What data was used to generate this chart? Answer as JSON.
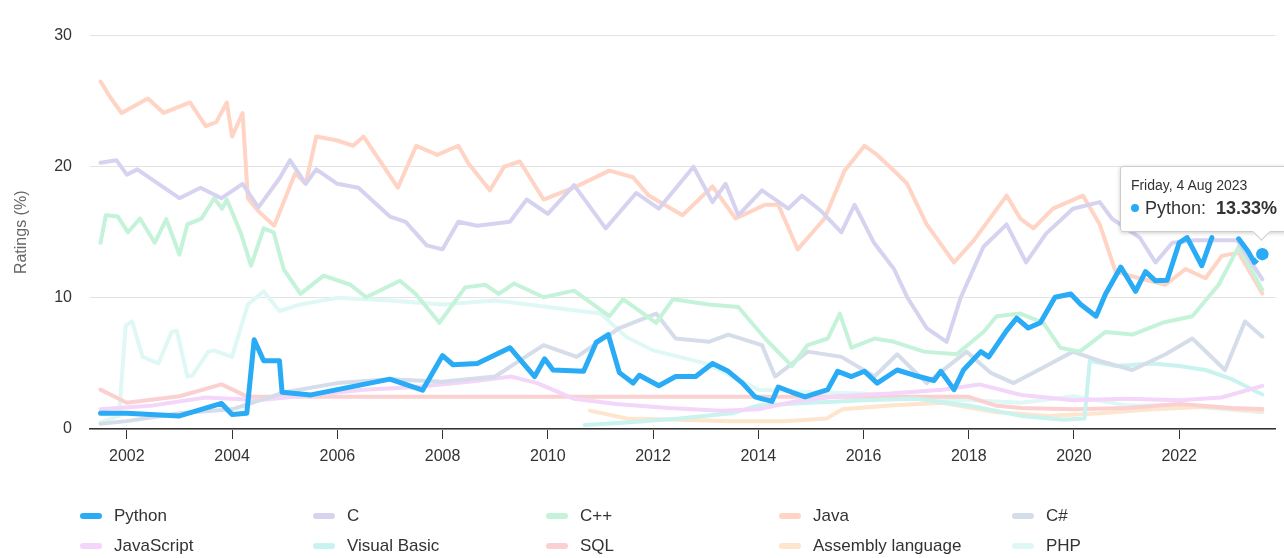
{
  "chart_data": {
    "type": "line",
    "ylabel": "Ratings (%)",
    "xlim": [
      2001.3,
      2023.83
    ],
    "xticks": [
      2002,
      2004,
      2006,
      2008,
      2010,
      2012,
      2014,
      2016,
      2018,
      2020,
      2022
    ],
    "ylim": [
      0,
      30
    ],
    "yticks": [
      0,
      10,
      20,
      30
    ],
    "grid": "y",
    "legend": "bottom",
    "marker": "none",
    "annotations": [
      "Friday, 4 Aug 2023",
      "Python: 13.33%"
    ],
    "series": [
      {
        "name": "Python",
        "color": "#29abf5",
        "x": [
          2001.5,
          2002.0,
          2003.0,
          2003.8,
          2004.0,
          2004.28,
          2004.42,
          2004.6,
          2004.9,
          2004.95,
          2005.5,
          2006.0,
          2006.5,
          2007.0,
          2007.62,
          2008.0,
          2008.2,
          2008.66,
          2009.28,
          2009.75,
          2009.94,
          2010.1,
          2010.68,
          2010.92,
          2011.15,
          2011.36,
          2011.62,
          2011.74,
          2012.11,
          2012.43,
          2012.81,
          2013.13,
          2013.43,
          2013.7,
          2013.94,
          2014.26,
          2014.38,
          2014.64,
          2014.89,
          2015.32,
          2015.51,
          2015.77,
          2016.02,
          2016.26,
          2016.64,
          2016.96,
          2017.34,
          2017.47,
          2017.72,
          2017.9,
          2018.23,
          2018.38,
          2018.72,
          2018.91,
          2019.13,
          2019.36,
          2019.64,
          2019.94,
          2020.13,
          2020.42,
          2020.6,
          2020.89,
          2021.17,
          2021.36,
          2021.55,
          2021.77,
          2022.0,
          2022.15,
          2022.43,
          2022.62,
          2022.8,
          2023.13,
          2023.3,
          2023.43,
          2023.58
        ],
        "values": [
          1.2,
          1.2,
          1.0,
          1.95,
          1.1,
          1.2,
          6.8,
          5.2,
          5.2,
          2.8,
          2.6,
          3.0,
          3.4,
          3.8,
          2.96,
          5.6,
          4.9,
          5.0,
          6.2,
          4.0,
          5.35,
          4.5,
          4.4,
          6.6,
          7.2,
          4.3,
          3.5,
          4.1,
          3.3,
          4.0,
          4.0,
          5.0,
          4.4,
          3.5,
          2.45,
          2.1,
          3.2,
          2.8,
          2.45,
          3.0,
          4.4,
          4.0,
          4.4,
          3.5,
          4.5,
          4.1,
          3.7,
          4.4,
          3.0,
          4.5,
          5.9,
          5.5,
          7.5,
          8.45,
          7.7,
          8.1,
          10.05,
          10.3,
          9.5,
          8.6,
          10.3,
          12.35,
          10.5,
          12.0,
          11.3,
          11.35,
          14.2,
          14.6,
          12.45,
          14.6,
          null,
          14.5,
          13.6,
          12.7,
          13.33
        ]
      },
      {
        "name": "C",
        "color": "#d6d3f1",
        "x": [
          2001.5,
          2001.8,
          2002.0,
          2002.2,
          2002.6,
          2003.0,
          2003.4,
          2003.8,
          2004.2,
          2004.5,
          2004.9,
          2005.1,
          2005.4,
          2005.6,
          2006.0,
          2006.4,
          2007.0,
          2007.3,
          2007.7,
          2008.0,
          2008.3,
          2008.66,
          2009.28,
          2009.6,
          2010.0,
          2010.5,
          2011.1,
          2011.68,
          2012.11,
          2012.77,
          2013.13,
          2013.38,
          2013.62,
          2014.07,
          2014.57,
          2014.83,
          2015.2,
          2015.58,
          2015.83,
          2016.2,
          2016.58,
          2016.83,
          2017.2,
          2017.58,
          2017.85,
          2018.28,
          2018.72,
          2019.09,
          2019.47,
          2019.98,
          2020.49,
          2020.72,
          2021.25,
          2021.55,
          2021.87,
          2022.3,
          2023.1,
          2023.58
        ],
        "values": [
          20.3,
          20.5,
          19.4,
          19.8,
          18.7,
          17.6,
          18.4,
          17.6,
          18.7,
          16.9,
          19.1,
          20.5,
          18.7,
          19.8,
          18.7,
          18.4,
          16.2,
          15.8,
          14.0,
          13.7,
          15.8,
          15.5,
          15.8,
          17.5,
          16.4,
          18.6,
          15.3,
          18.0,
          16.8,
          20.0,
          17.3,
          18.7,
          16.3,
          18.2,
          16.8,
          17.8,
          16.6,
          15.0,
          17.1,
          14.2,
          12.2,
          10.05,
          7.7,
          6.65,
          10.05,
          13.9,
          15.6,
          12.7,
          14.9,
          16.8,
          17.3,
          16.05,
          14.6,
          12.7,
          14.2,
          14.4,
          14.4,
          11.41
        ]
      },
      {
        "name": "C++",
        "color": "#c4f3da",
        "x": [
          2001.5,
          2001.6,
          2001.83,
          2002.02,
          2002.25,
          2002.53,
          2002.75,
          2003.0,
          2003.15,
          2003.42,
          2003.66,
          2003.81,
          2003.9,
          2004.17,
          2004.36,
          2004.6,
          2004.79,
          2004.98,
          2005.3,
          2005.74,
          2006.25,
          2006.55,
          2007.19,
          2007.49,
          2007.94,
          2008.43,
          2008.81,
          2009.07,
          2009.36,
          2009.92,
          2010.5,
          2011.17,
          2011.43,
          2012.06,
          2012.38,
          2013.06,
          2013.62,
          2014.13,
          2014.64,
          2014.94,
          2015.32,
          2015.55,
          2015.77,
          2016.21,
          2016.58,
          2017.15,
          2017.77,
          2018.28,
          2018.53,
          2018.98,
          2019.42,
          2019.74,
          2020.11,
          2020.6,
          2021.11,
          2021.68,
          2022.25,
          2022.75,
          2023.13,
          2023.58
        ],
        "values": [
          14.2,
          16.3,
          16.2,
          15.0,
          16.05,
          14.2,
          16.0,
          13.3,
          15.6,
          16.05,
          17.6,
          16.8,
          17.5,
          14.9,
          12.45,
          15.3,
          15.0,
          12.2,
          10.3,
          11.7,
          11.0,
          10.05,
          11.3,
          10.3,
          8.1,
          10.8,
          11.0,
          10.3,
          11.1,
          10.05,
          10.55,
          8.6,
          9.9,
          8.1,
          9.9,
          9.5,
          9.3,
          6.9,
          4.8,
          6.4,
          6.9,
          8.8,
          6.2,
          6.9,
          6.65,
          5.9,
          5.7,
          7.4,
          8.6,
          8.8,
          8.1,
          6.2,
          5.9,
          7.4,
          7.2,
          8.1,
          8.6,
          11.0,
          13.9,
          10.63
        ]
      },
      {
        "name": "Java",
        "color": "#ffd4c4",
        "x": [
          2001.5,
          2001.7,
          2001.9,
          2002.4,
          2002.7,
          2003.2,
          2003.5,
          2003.7,
          2003.9,
          2004.0,
          2004.2,
          2004.3,
          2004.5,
          2004.8,
          2005.2,
          2005.4,
          2005.6,
          2006.0,
          2006.3,
          2006.5,
          2006.8,
          2007.15,
          2007.5,
          2007.9,
          2008.3,
          2008.5,
          2008.9,
          2009.17,
          2009.47,
          2009.92,
          2010.55,
          2011.17,
          2011.62,
          2011.92,
          2012.56,
          2013.13,
          2013.57,
          2014.13,
          2014.38,
          2014.75,
          2015.26,
          2015.64,
          2016.02,
          2016.26,
          2016.58,
          2016.83,
          2017.2,
          2017.72,
          2018.1,
          2018.72,
          2018.98,
          2019.23,
          2019.6,
          2020.17,
          2020.49,
          2020.79,
          2021.25,
          2021.74,
          2022.12,
          2022.5,
          2022.81,
          2023.13,
          2023.58
        ],
        "values": [
          26.5,
          25.2,
          24.1,
          25.2,
          24.1,
          24.9,
          23.1,
          23.4,
          24.9,
          22.3,
          24.1,
          17.6,
          16.6,
          15.5,
          19.5,
          18.7,
          22.3,
          22.0,
          21.6,
          22.3,
          20.5,
          18.4,
          21.6,
          20.9,
          21.6,
          20.2,
          18.2,
          20.0,
          20.4,
          17.5,
          18.5,
          19.7,
          19.2,
          17.8,
          16.3,
          18.5,
          16.05,
          17.1,
          17.1,
          13.7,
          16.05,
          19.7,
          21.6,
          20.9,
          19.7,
          18.7,
          15.6,
          12.7,
          14.4,
          17.8,
          16.05,
          15.3,
          16.8,
          17.8,
          15.6,
          12.0,
          11.5,
          11.0,
          12.2,
          11.5,
          13.2,
          13.45,
          10.33
        ]
      },
      {
        "name": "C#",
        "color": "#d5dcea",
        "x": [
          2001.5,
          2002.0,
          2003.0,
          2004.0,
          2005.0,
          2006.0,
          2007.0,
          2008.0,
          2009.0,
          2009.92,
          2010.55,
          2011.36,
          2012.06,
          2012.43,
          2013.06,
          2013.43,
          2014.07,
          2014.32,
          2014.94,
          2015.58,
          2016.21,
          2016.64,
          2017.2,
          2017.96,
          2018.41,
          2018.85,
          2019.47,
          2019.98,
          2020.49,
          2021.11,
          2021.74,
          2022.25,
          2022.87,
          2023.25,
          2023.58
        ],
        "values": [
          0.4,
          0.6,
          1.2,
          1.5,
          2.8,
          3.5,
          3.8,
          3.6,
          4.0,
          6.4,
          5.5,
          7.7,
          8.8,
          6.9,
          6.65,
          7.2,
          6.4,
          4.0,
          5.9,
          5.5,
          4.0,
          5.7,
          3.5,
          5.9,
          4.3,
          3.5,
          4.8,
          5.9,
          5.2,
          4.5,
          5.7,
          6.9,
          4.5,
          8.2,
          7.04
        ]
      },
      {
        "name": "JavaScript",
        "color": "#f3d6f9",
        "x": [
          2001.5,
          2002.5,
          2003.5,
          2004.5,
          2005.5,
          2006.5,
          2007.5,
          2008.5,
          2009.3,
          2009.8,
          2010.5,
          2011.3,
          2012.3,
          2013.3,
          2014.0,
          2014.7,
          2015.5,
          2016.5,
          2017.5,
          2018.2,
          2019.0,
          2020.0,
          2021.0,
          2022.0,
          2022.8,
          2023.58
        ],
        "values": [
          1.5,
          1.8,
          2.4,
          2.2,
          2.6,
          3.0,
          3.2,
          3.6,
          4.0,
          3.5,
          2.3,
          1.9,
          1.6,
          1.4,
          1.5,
          2.1,
          2.5,
          2.7,
          3.0,
          3.4,
          2.6,
          2.2,
          2.3,
          2.2,
          2.4,
          3.29
        ]
      },
      {
        "name": "Visual Basic",
        "color": "#c9f3ee",
        "x": [
          2010.7,
          2011.5,
          2012.5,
          2013.5,
          2014.0,
          2015.0,
          2016.0,
          2017.0,
          2018.0,
          2019.0,
          2019.8,
          2020.2,
          2020.3,
          2020.8,
          2021.5,
          2022.0,
          2022.5,
          2023.0,
          2023.58
        ],
        "values": [
          0.3,
          0.5,
          0.8,
          1.2,
          1.8,
          2.0,
          2.2,
          2.3,
          1.8,
          1.0,
          0.7,
          0.8,
          5.2,
          4.8,
          5.0,
          4.8,
          4.5,
          3.8,
          2.63
        ]
      },
      {
        "name": "SQL",
        "color": "#fad1d0",
        "x": [
          2001.5,
          2002.0,
          2003.0,
          2003.8,
          2004.3,
          2018.0,
          2018.5,
          2019.0,
          2020.0,
          2021.0,
          2022.0,
          2023.0,
          2023.58
        ],
        "values": [
          3.0,
          2.0,
          2.5,
          3.4,
          2.45,
          2.45,
          1.8,
          1.6,
          1.5,
          1.6,
          1.9,
          1.6,
          1.53
        ]
      },
      {
        "name": "Assembly language",
        "color": "#fee5cd",
        "x": [
          2010.8,
          2011.5,
          2012.5,
          2013.5,
          2014.5,
          2015.3,
          2015.6,
          2016.5,
          2017.5,
          2018.5,
          2019.5,
          2020.5,
          2021.5,
          2022.5,
          2023.58
        ],
        "values": [
          1.4,
          0.8,
          0.7,
          0.6,
          0.6,
          0.8,
          1.5,
          1.8,
          2.0,
          1.3,
          1.0,
          1.2,
          1.5,
          1.7,
          1.34
        ]
      },
      {
        "name": "PHP",
        "color": "#dff8f5",
        "x": [
          2001.5,
          2001.85,
          2001.98,
          2002.1,
          2002.3,
          2002.6,
          2002.85,
          2002.95,
          2003.15,
          2003.25,
          2003.55,
          2003.65,
          2004.0,
          2004.3,
          2004.6,
          2004.9,
          2005.3,
          2006.0,
          2007.0,
          2008.0,
          2009.0,
          2010.0,
          2011.0,
          2011.5,
          2012.0,
          2013.0,
          2014.0,
          2015.0,
          2016.0,
          2017.0,
          2018.0,
          2019.0,
          2020.0,
          2021.0,
          2022.0,
          2023.58
        ],
        "values": [
          0.5,
          1.0,
          7.9,
          8.2,
          5.5,
          5.0,
          7.4,
          7.5,
          4.0,
          4.1,
          5.9,
          6.0,
          5.5,
          9.5,
          10.5,
          9.0,
          9.5,
          10.0,
          9.8,
          9.5,
          9.8,
          9.3,
          8.8,
          7.0,
          6.0,
          5.0,
          3.0,
          2.8,
          2.7,
          2.3,
          2.2,
          2.0,
          2.5,
          1.8,
          1.8,
          1.27
        ]
      }
    ]
  }
}
